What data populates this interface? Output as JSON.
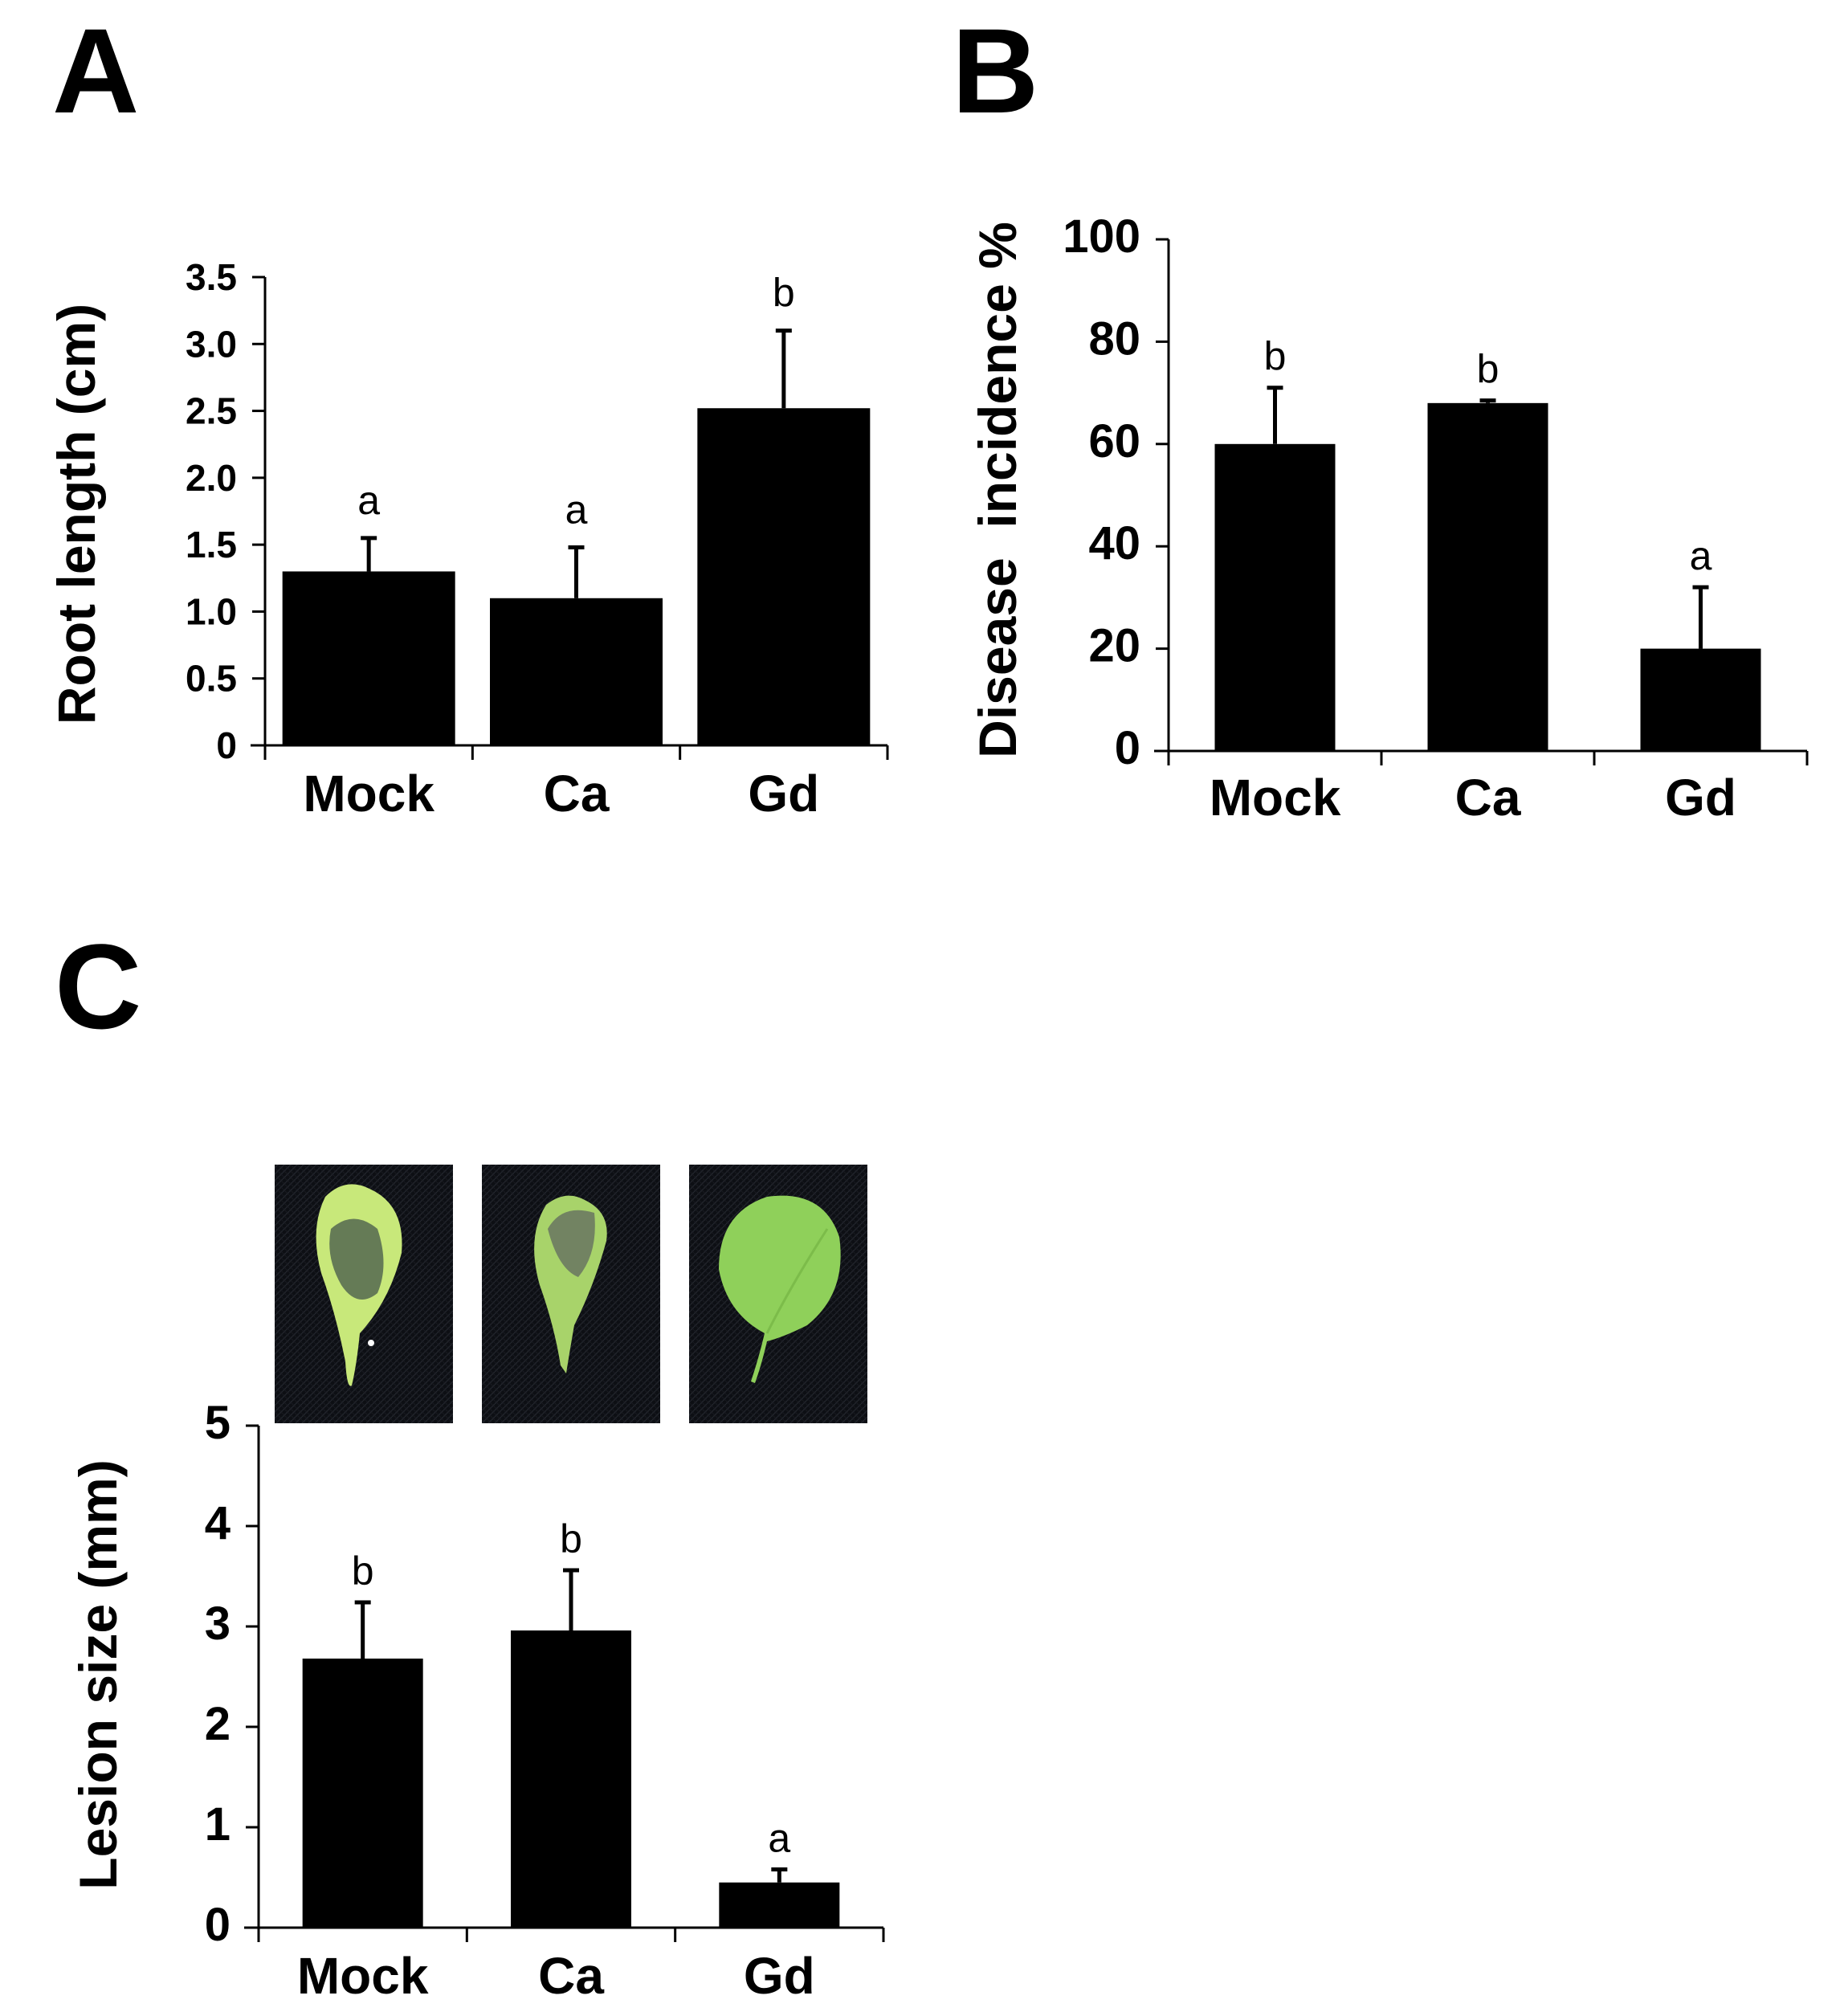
{
  "panels": {
    "a": "A",
    "b": "B",
    "c": "C"
  },
  "chart_data": [
    {
      "id": "A",
      "type": "bar",
      "categories": [
        "Mock",
        "Ca",
        "Gd"
      ],
      "values": [
        1.3,
        1.1,
        2.52
      ],
      "errors": [
        0.25,
        0.38,
        0.58
      ],
      "significance": [
        "a",
        "a",
        "b"
      ],
      "ylabel": "Root length (cm)",
      "xlabel": "",
      "ylim": [
        0,
        3.5
      ],
      "yticks": [
        "0",
        "0.5",
        "1.0",
        "1.5",
        "2.0",
        "2.5",
        "3.0",
        "3.5"
      ],
      "ytick_values": [
        0,
        0.5,
        1.0,
        1.5,
        2.0,
        2.5,
        3.0,
        3.5
      ]
    },
    {
      "id": "B",
      "type": "bar",
      "categories": [
        "Mock",
        "Ca",
        "Gd"
      ],
      "values": [
        60,
        68,
        20
      ],
      "errors": [
        11,
        0.5,
        12
      ],
      "significance": [
        "b",
        "b",
        "a"
      ],
      "ylabel": "Disease  incidence %",
      "xlabel": "",
      "ylim": [
        0,
        100
      ],
      "yticks": [
        "0",
        "20",
        "40",
        "60",
        "80",
        "100"
      ],
      "ytick_values": [
        0,
        20,
        40,
        60,
        80,
        100
      ]
    },
    {
      "id": "C",
      "type": "bar",
      "categories": [
        "Mock",
        "Ca",
        "Gd"
      ],
      "values": [
        2.68,
        2.96,
        0.45
      ],
      "errors": [
        0.56,
        0.6,
        0.13
      ],
      "significance": [
        "b",
        "b",
        "a"
      ],
      "ylabel": "Lesion size (mm)",
      "xlabel": "",
      "ylim": [
        0,
        5
      ],
      "yticks": [
        "0",
        "1",
        "2",
        "3",
        "4",
        "5"
      ],
      "ytick_values": [
        0,
        1,
        2,
        3,
        4,
        5
      ]
    }
  ],
  "leaf_photos": [
    {
      "icon": "diseased-leaf-mock-icon",
      "leaf": "#c8e87a",
      "lesion": "#5a6f52"
    },
    {
      "icon": "diseased-leaf-ca-icon",
      "leaf": "#a8d36a",
      "lesion": "#6b7a62"
    },
    {
      "icon": "healthy-leaf-gd-icon",
      "leaf": "#8fd05a",
      "lesion": ""
    }
  ]
}
